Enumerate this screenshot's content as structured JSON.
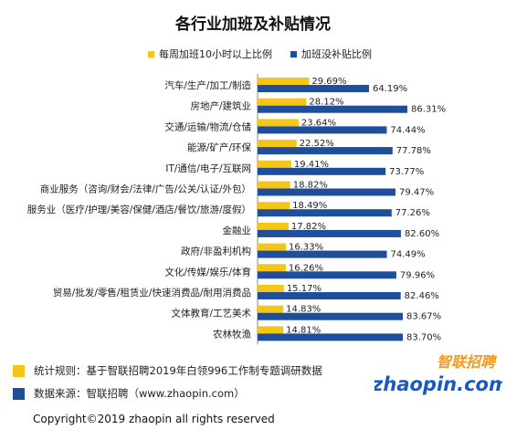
{
  "colors": {
    "series1": "#F5C518",
    "series2": "#1F4E9A",
    "logo_blue": "#1A58C4",
    "logo_orange": "#F39A1E"
  },
  "chart_data": {
    "type": "bar",
    "orientation": "horizontal",
    "title": "各行业加班及补贴情况",
    "categories": [
      "汽车/生产/加工/制造",
      "房地产/建筑业",
      "交通/运输/物流/仓储",
      "能源/矿产/环保",
      "IT/通信/电子/互联网",
      "商业服务（咨询/财会/法律/广告/公关/认证/外包）",
      "服务业（医疗/护理/美容/保健/酒店/餐饮/旅游/度假）",
      "金融业",
      "政府/非盈利机构",
      "文化/传媒/娱乐/体育",
      "贸易/批发/零售/租赁业/快速消费品/耐用消费品",
      "文体教育/工艺美术",
      "农林牧渔"
    ],
    "series": [
      {
        "name": "每周加班10小时以上比例",
        "values": [
          29.69,
          28.12,
          23.64,
          22.52,
          19.41,
          18.82,
          18.49,
          17.82,
          16.33,
          16.26,
          15.17,
          14.83,
          14.81
        ],
        "labels": [
          "29.69%",
          "28.12%",
          "23.64%",
          "22.52%",
          "19.41%",
          "18.82%",
          "18.49%",
          "17.82%",
          "16.33%",
          "16.26%",
          "15.17%",
          "14.83%",
          "14.81%"
        ]
      },
      {
        "name": "加班没补贴比例",
        "values": [
          64.19,
          86.31,
          74.44,
          77.78,
          73.77,
          79.47,
          77.26,
          82.6,
          74.49,
          79.96,
          82.46,
          83.67,
          83.7
        ],
        "labels": [
          "64.19%",
          "86.31%",
          "74.44%",
          "77.78%",
          "73.77%",
          "79.47%",
          "77.26%",
          "82.60%",
          "74.49%",
          "79.96%",
          "82.46%",
          "83.67%",
          "83.70%"
        ]
      }
    ],
    "legend_position": "top",
    "grid": false
  },
  "footer": {
    "rule_label": "统计规则：基于智联招聘2019年白领996工作制专题调研数据",
    "source_label": "数据来源：智联招聘（www.zhaopin.com）",
    "copyright": "Copyright©2019 zhaopin all rights reserved"
  },
  "logo": {
    "cn": "智联招聘",
    "en": "zhaopin.com"
  }
}
